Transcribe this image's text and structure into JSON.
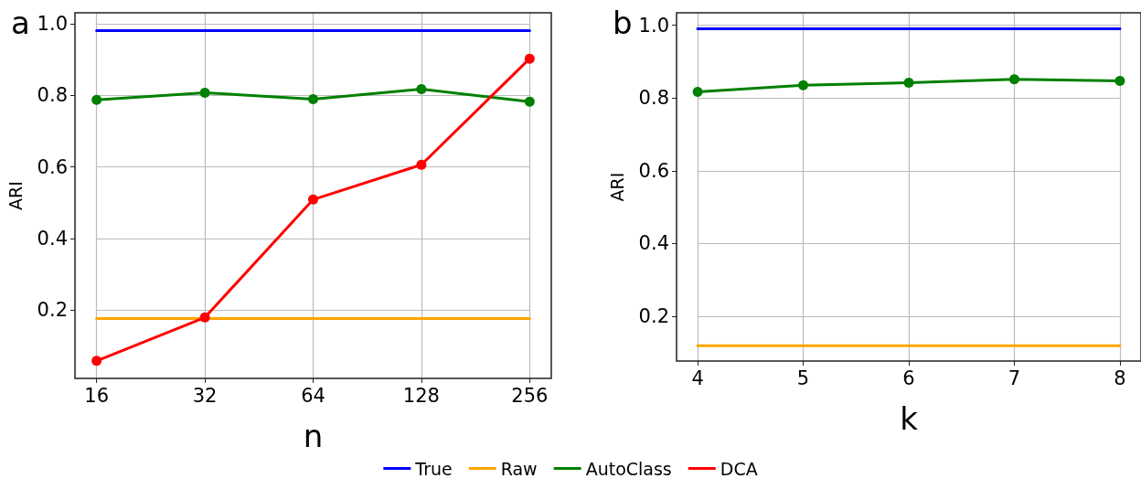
{
  "chart_data": [
    {
      "type": "line",
      "xlabel": "n",
      "ylabel": "ARI",
      "annotations": [
        "a"
      ],
      "categories": [
        "16",
        "32",
        "64",
        "128",
        "256"
      ],
      "ylim": [
        0.01,
        1.03
      ],
      "yticks": [
        0.2,
        0.4,
        0.6,
        0.8,
        {
          "value": 1,
          "label": "1.0"
        }
      ],
      "grid": true,
      "legend": "bottom",
      "marker": "circle",
      "line_style": "solid",
      "series": [
        {
          "name": "True",
          "color": "#0000ff",
          "marker": "none",
          "values": [
            0.98,
            0.98,
            0.98,
            0.98,
            0.98
          ]
        },
        {
          "name": "Raw",
          "color": "#ffa500",
          "marker": "none",
          "values": [
            0.177,
            0.177,
            0.177,
            0.177,
            0.177
          ]
        },
        {
          "name": "AutoClass",
          "color": "#008000",
          "values": [
            0.787,
            0.807,
            0.789,
            0.817,
            0.782
          ]
        },
        {
          "name": "DCA",
          "color": "#ff0000",
          "values": [
            0.059,
            0.18,
            0.509,
            0.606,
            0.902
          ]
        }
      ]
    },
    {
      "type": "line",
      "xlabel": "k",
      "ylabel": "ARI",
      "annotations": [
        "b"
      ],
      "categories": [
        "4",
        "5",
        "6",
        "7",
        "8"
      ],
      "ylim": [
        0.077,
        1.034
      ],
      "yticks": [
        0.2,
        0.4,
        0.6,
        0.8,
        {
          "value": 1,
          "label": "1.0"
        }
      ],
      "grid": true,
      "legend": false,
      "marker": "circle",
      "line_style": "solid",
      "series": [
        {
          "color": "#0000ff",
          "marker": "none",
          "values": [
            0.99,
            0.99,
            0.99,
            0.99,
            0.99
          ]
        },
        {
          "color": "#ffa500",
          "marker": "none",
          "values": [
            0.119,
            0.119,
            0.119,
            0.119,
            0.119
          ]
        },
        {
          "color": "#008000",
          "values": [
            0.817,
            0.835,
            0.842,
            0.851,
            0.847
          ]
        }
      ]
    }
  ]
}
